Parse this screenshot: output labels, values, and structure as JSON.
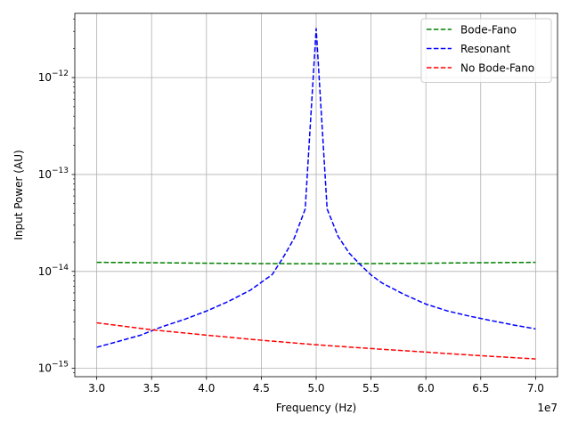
{
  "chart_data": {
    "type": "line",
    "title": "",
    "xlabel": "Frequency (Hz)",
    "ylabel": "Input Power (AU)",
    "x_offset_label": "1e7",
    "x_scale": "linear",
    "y_scale": "log",
    "xlim": [
      28000000,
      72000000
    ],
    "ylim": [
      8.2e-16,
      4.6e-12
    ],
    "grid": true,
    "legend_position": "top-right",
    "x_ticks": [
      {
        "value": 30000000,
        "label": "3.0"
      },
      {
        "value": 35000000,
        "label": "3.5"
      },
      {
        "value": 40000000,
        "label": "4.0"
      },
      {
        "value": 45000000,
        "label": "4.5"
      },
      {
        "value": 50000000,
        "label": "5.0"
      },
      {
        "value": 55000000,
        "label": "5.5"
      },
      {
        "value": 60000000,
        "label": "6.0"
      },
      {
        "value": 65000000,
        "label": "6.5"
      },
      {
        "value": 70000000,
        "label": "7.0"
      }
    ],
    "y_ticks": [
      {
        "value": 1e-15,
        "base": "10",
        "exp": "−15"
      },
      {
        "value": 1e-14,
        "base": "10",
        "exp": "−14"
      },
      {
        "value": 1e-13,
        "base": "10",
        "exp": "−13"
      },
      {
        "value": 1e-12,
        "base": "10",
        "exp": "−12"
      }
    ],
    "series": [
      {
        "name": "Bode-Fano",
        "color": "#008000",
        "dash": "dashed",
        "x": [
          30000000,
          35000000,
          40000000,
          45000000,
          50000000,
          55000000,
          60000000,
          65000000,
          70000000
        ],
        "y": [
          1.24e-14,
          1.23e-14,
          1.215e-14,
          1.205e-14,
          1.2e-14,
          1.205e-14,
          1.215e-14,
          1.23e-14,
          1.24e-14
        ]
      },
      {
        "name": "Resonant",
        "color": "#0000ff",
        "dash": "dashed",
        "x": [
          30000000,
          32000000,
          34000000,
          36000000,
          38000000,
          40000000,
          42000000,
          44000000,
          46000000,
          47000000,
          48000000,
          49000000,
          50000000,
          51000000,
          52000000,
          53000000,
          54000000,
          55000000,
          56000000,
          58000000,
          60000000,
          62000000,
          64000000,
          66000000,
          68000000,
          70000000
        ],
        "y": [
          1.65e-15,
          1.9e-15,
          2.2e-15,
          2.7e-15,
          3.2e-15,
          3.9e-15,
          4.9e-15,
          6.4e-15,
          9.3e-15,
          1.4e-14,
          2.2e-14,
          4.4e-14,
          3.2e-12,
          4.4e-14,
          2.3e-14,
          1.55e-14,
          1.18e-14,
          9.2e-15,
          7.6e-15,
          5.8e-15,
          4.6e-15,
          3.9e-15,
          3.45e-15,
          3.1e-15,
          2.8e-15,
          2.55e-15
        ]
      },
      {
        "name": "No Bode-Fano",
        "color": "#ff0000",
        "dash": "dashed",
        "x": [
          30000000,
          35000000,
          40000000,
          45000000,
          50000000,
          55000000,
          60000000,
          65000000,
          70000000
        ],
        "y": [
          2.95e-15,
          2.5e-15,
          2.2e-15,
          1.95e-15,
          1.75e-15,
          1.6e-15,
          1.47e-15,
          1.35e-15,
          1.25e-15
        ]
      }
    ]
  }
}
